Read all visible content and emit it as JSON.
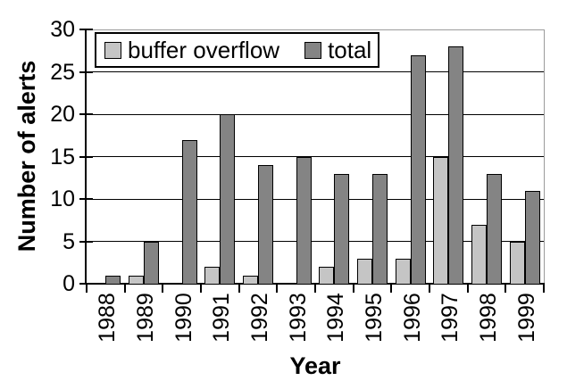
{
  "chart_data": {
    "type": "bar",
    "title": "",
    "xlabel": "Year",
    "ylabel": "Number of alerts",
    "categories": [
      "1988",
      "1989",
      "1990",
      "1991",
      "1992",
      "1993",
      "1994",
      "1995",
      "1996",
      "1997",
      "1998",
      "1999"
    ],
    "series": [
      {
        "name": "buffer overflow",
        "color": "#c5c5c5",
        "values": [
          0,
          1,
          0,
          2,
          1,
          0,
          2,
          3,
          3,
          15,
          7,
          5
        ]
      },
      {
        "name": "total",
        "color": "#848484",
        "values": [
          1,
          5,
          17,
          20,
          14,
          15,
          13,
          13,
          27,
          28,
          13,
          11
        ]
      }
    ],
    "ylim": [
      0,
      30
    ],
    "yticks": [
      0,
      5,
      10,
      15,
      20,
      25,
      30
    ],
    "grid": true,
    "legend_position": "top-left-inside",
    "bar_border_color": "#000000",
    "gridline_color": "#000000",
    "plot_border_color": "#9b9b9b",
    "background_color": "#ffffff"
  }
}
